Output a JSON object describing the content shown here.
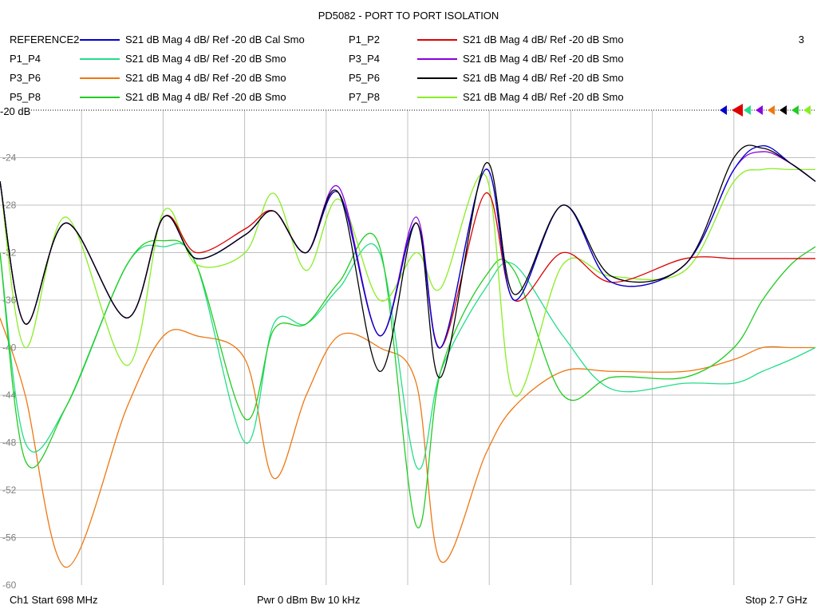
{
  "chart_data": {
    "type": "line",
    "title": "PD5082 - PORT TO PORT ISOLATION",
    "x_range_mhz": [
      698,
      2700
    ],
    "ylim": [
      -60,
      -20
    ],
    "y_ticks": [
      "-20 dB",
      "-24",
      "-28",
      "-32",
      "-36",
      "-40",
      "-44",
      "-48",
      "-52",
      "-56",
      "-60"
    ],
    "grid": true,
    "legend_placement": "top",
    "legend": [
      {
        "name": "REFERENCE2",
        "desc": "S21  dB Mag  4 dB/ Ref -20 dB  Cal Smo",
        "color": "#0000cc"
      },
      {
        "name": "P1_P2",
        "desc": "S21  dB Mag  4 dB/ Ref -20 dB  Smo",
        "color": "#dd0000"
      },
      {
        "name": "P1_P4",
        "desc": "S21  dB Mag  4 dB/ Ref -20 dB  Smo",
        "color": "#22dd88"
      },
      {
        "name": "P3_P4",
        "desc": "S21  dB Mag  4 dB/ Ref -20 dB  Smo",
        "color": "#8800dd"
      },
      {
        "name": "P3_P6",
        "desc": "S21  dB Mag  4 dB/ Ref -20 dB  Smo",
        "color": "#ee7711"
      },
      {
        "name": "P5_P6",
        "desc": "S21  dB Mag  4 dB/ Ref -20 dB  Smo",
        "color": "#000000"
      },
      {
        "name": "P5_P8",
        "desc": "S21  dB Mag  4 dB/ Ref -20 dB  Smo",
        "color": "#22cc22"
      },
      {
        "name": "P7_P8",
        "desc": "S21  dB Mag  4 dB/ Ref -20 dB  Smo",
        "color": "#88ee22"
      }
    ],
    "series": [
      {
        "name": "REFERENCE2",
        "color": "#0000cc",
        "x": [
          698,
          760,
          860,
          1010,
          1100,
          1180,
          1300,
          1370,
          1450,
          1530,
          1630,
          1720,
          1780,
          1890,
          1960,
          2080,
          2200,
          2380,
          2500,
          2570,
          2640,
          2700
        ],
        "y": [
          -26,
          -38,
          -29.5,
          -37.5,
          -29,
          -32.5,
          -30.5,
          -28.5,
          -32,
          -27,
          -39,
          -29.5,
          -40,
          -25,
          -36,
          -28,
          -34.5,
          -33,
          -25,
          -23,
          -24.5,
          -26
        ]
      },
      {
        "name": "P1_P2",
        "color": "#dd0000",
        "x": [
          698,
          760,
          860,
          1010,
          1100,
          1180,
          1300,
          1370,
          1450,
          1530,
          1630,
          1720,
          1780,
          1890,
          1960,
          2080,
          2200,
          2380,
          2500,
          2570,
          2640,
          2700
        ],
        "y": [
          -26,
          -38,
          -29.5,
          -37.5,
          -29,
          -32,
          -30,
          -28.5,
          -32,
          -27,
          -39,
          -29.5,
          -40,
          -27,
          -36,
          -32,
          -34.5,
          -32.5,
          -32.5,
          -32.5,
          -32.5,
          -32.5
        ]
      },
      {
        "name": "P1_P4",
        "color": "#22dd88",
        "x": [
          698,
          760,
          860,
          1010,
          1100,
          1180,
          1300,
          1370,
          1450,
          1530,
          1630,
          1720,
          1780,
          1890,
          1960,
          2080,
          2200,
          2380,
          2500,
          2570,
          2640,
          2700
        ],
        "y": [
          -32,
          -48,
          -45,
          -33,
          -31.5,
          -33,
          -48,
          -38,
          -38,
          -35,
          -32,
          -50,
          -42,
          -35,
          -33,
          -39,
          -43.5,
          -43,
          -43,
          -42,
          -41,
          -40
        ]
      },
      {
        "name": "P3_P4",
        "color": "#8800dd",
        "x": [
          698,
          760,
          860,
          1010,
          1100,
          1180,
          1300,
          1370,
          1450,
          1530,
          1630,
          1720,
          1780,
          1890,
          1960,
          2080,
          2200,
          2380,
          2500,
          2570,
          2640,
          2700
        ],
        "y": [
          -26,
          -38,
          -29.5,
          -37.5,
          -29,
          -32.5,
          -30.5,
          -28.5,
          -32,
          -26.5,
          -39,
          -29,
          -40,
          -25,
          -36,
          -28,
          -34.5,
          -33,
          -25,
          -23.5,
          -24.5,
          -26
        ]
      },
      {
        "name": "P3_P6",
        "color": "#ee7711",
        "x": [
          698,
          760,
          860,
          1010,
          1100,
          1180,
          1300,
          1370,
          1450,
          1530,
          1630,
          1720,
          1780,
          1890,
          1960,
          2080,
          2200,
          2380,
          2500,
          2570,
          2640,
          2700
        ],
        "y": [
          -37.5,
          -44,
          -58.5,
          -45,
          -39,
          -39,
          -41,
          -51,
          -44,
          -39,
          -40,
          -43,
          -58,
          -49,
          -45,
          -42,
          -42,
          -42,
          -41,
          -40,
          -40,
          -40
        ]
      },
      {
        "name": "P5_P6",
        "color": "#000000",
        "x": [
          698,
          760,
          860,
          1010,
          1100,
          1180,
          1300,
          1370,
          1450,
          1530,
          1630,
          1720,
          1780,
          1890,
          1960,
          2080,
          2200,
          2380,
          2500,
          2570,
          2640,
          2700
        ],
        "y": [
          -26,
          -38,
          -29.5,
          -37.5,
          -29,
          -32.5,
          -30.5,
          -28.5,
          -32,
          -27,
          -42,
          -29.5,
          -42.5,
          -24.5,
          -35.5,
          -28,
          -34,
          -33,
          -24,
          -23.2,
          -24.5,
          -26
        ]
      },
      {
        "name": "P5_P8",
        "color": "#22cc22",
        "x": [
          698,
          760,
          860,
          1010,
          1100,
          1180,
          1300,
          1370,
          1450,
          1530,
          1630,
          1720,
          1780,
          1890,
          1960,
          2080,
          2200,
          2380,
          2500,
          2570,
          2640,
          2700
        ],
        "y": [
          -32,
          -49.5,
          -45,
          -33,
          -31,
          -33,
          -46,
          -38.5,
          -38,
          -34.5,
          -31.5,
          -55,
          -42,
          -34,
          -33.5,
          -44,
          -42.5,
          -42.5,
          -40,
          -36,
          -33,
          -31.5
        ]
      },
      {
        "name": "P7_P8",
        "color": "#88ee22",
        "x": [
          698,
          760,
          860,
          1010,
          1100,
          1180,
          1300,
          1370,
          1450,
          1530,
          1630,
          1720,
          1780,
          1890,
          1960,
          2080,
          2200,
          2380,
          2500,
          2570,
          2640,
          2700
        ],
        "y": [
          -26,
          -40,
          -29,
          -41.5,
          -28.5,
          -33,
          -32,
          -27,
          -33.5,
          -27.5,
          -36,
          -32,
          -35,
          -25.5,
          -44,
          -33,
          -34,
          -33.5,
          -26,
          -25,
          -25,
          -25
        ]
      }
    ]
  },
  "header": {
    "marker_count": "3"
  },
  "footer": {
    "start": "Ch1  Start  698 MHz",
    "power": "Pwr  0 dBm  Bw  10 kHz",
    "stop": "Stop  2.7 GHz"
  }
}
